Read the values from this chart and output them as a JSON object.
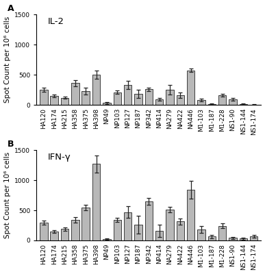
{
  "categories": [
    "HA120",
    "HA174",
    "HA215",
    "HA358",
    "HA375",
    "HA398",
    "NP49",
    "NP103",
    "NP127",
    "NP187",
    "NP342",
    "NP414",
    "NA279",
    "NA422",
    "NA446",
    "M1-103",
    "M1-187",
    "M1-228",
    "NS1-90",
    "NS1-144",
    "NS1-174"
  ],
  "panel_A": {
    "label": "IL-2",
    "values": [
      250,
      150,
      120,
      360,
      230,
      500,
      30,
      210,
      330,
      185,
      260,
      90,
      250,
      160,
      575,
      80,
      10,
      160,
      90,
      15,
      5
    ],
    "errors": [
      30,
      20,
      20,
      50,
      60,
      70,
      15,
      25,
      70,
      70,
      30,
      25,
      80,
      40,
      30,
      20,
      10,
      20,
      25,
      10,
      5
    ]
  },
  "panel_B": {
    "label": "IFN-γ",
    "values": [
      300,
      150,
      190,
      340,
      545,
      1270,
      20,
      340,
      470,
      265,
      650,
      160,
      510,
      315,
      840,
      185,
      65,
      240,
      40,
      30,
      65
    ],
    "errors": [
      35,
      25,
      30,
      50,
      45,
      140,
      10,
      35,
      100,
      150,
      55,
      100,
      45,
      50,
      150,
      55,
      30,
      40,
      20,
      15,
      20
    ]
  },
  "ylim": [
    0,
    1500
  ],
  "yticks": [
    0,
    500,
    1000,
    1500
  ],
  "ylabel": "Spot Count per 10⁶ cells",
  "bar_color": "#b8b8b8",
  "bar_edge_color": "#222222",
  "background_color": "#ffffff",
  "panel_labels": [
    "A",
    "B"
  ],
  "panel_label_fontsize": 9,
  "tick_fontsize": 6.5,
  "axis_label_fontsize": 7.5,
  "annotation_fontsize": 9.5
}
